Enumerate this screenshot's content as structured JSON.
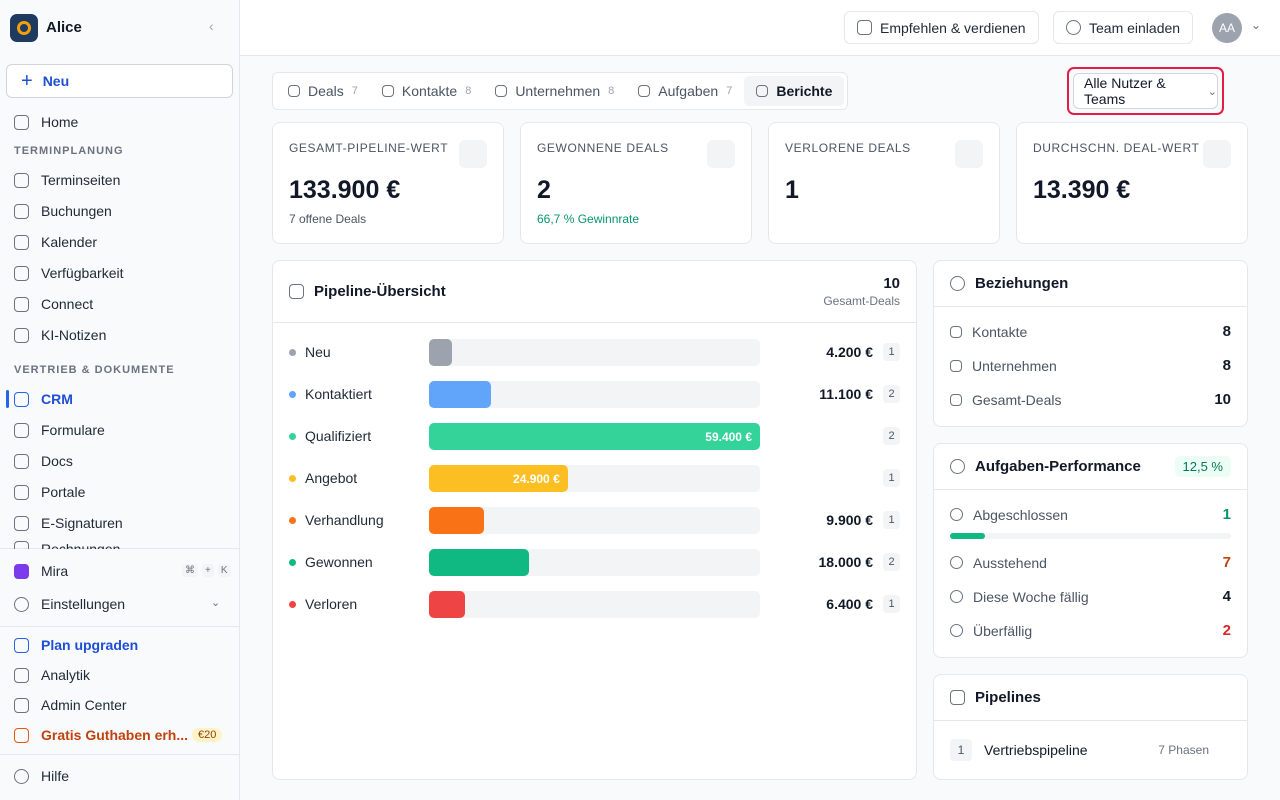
{
  "sidebar": {
    "workspace": "Alice",
    "new_button": "Neu",
    "home": "Home",
    "sections": [
      {
        "title": "TERMINPLANUNG",
        "items": [
          "Terminseiten",
          "Buchungen",
          "Kalender",
          "Verfügbarkeit",
          "Connect",
          "KI-Notizen"
        ]
      },
      {
        "title": "VERTRIEB & DOKUMENTE",
        "items": [
          "CRM",
          "Formulare",
          "Docs",
          "Portale",
          "E-Signaturen",
          "Rechnungen"
        ]
      }
    ],
    "assistant": {
      "label": "Mira",
      "keys": [
        "⌘",
        "+",
        "K"
      ]
    },
    "settings": "Einstellungen",
    "bottom": [
      "Plan upgraden",
      "Analytik",
      "Admin Center",
      "Gratis Guthaben erh..."
    ],
    "credit_badge": "€20",
    "help": "Hilfe"
  },
  "header": {
    "refer": "Empfehlen & verdienen",
    "invite": "Team einladen",
    "avatar": "AA"
  },
  "tabs": [
    {
      "label": "Deals",
      "count": 7
    },
    {
      "label": "Kontakte",
      "count": 8
    },
    {
      "label": "Unternehmen",
      "count": 8
    },
    {
      "label": "Aufgaben",
      "count": 7
    },
    {
      "label": "Berichte"
    }
  ],
  "filter": "Alle Nutzer & Teams",
  "kpis": [
    {
      "label": "GESAMT-PIPELINE-WERT",
      "value": "133.900 €",
      "sub": "7 offene Deals"
    },
    {
      "label": "GEWONNENE DEALS",
      "value": "2",
      "sub": "66,7 % Gewinnrate"
    },
    {
      "label": "VERLORENE DEALS",
      "value": "1"
    },
    {
      "label": "DURCHSCHN. DEAL-WERT",
      "value": "13.390 €"
    }
  ],
  "pipeline": {
    "title": "Pipeline-Übersicht",
    "total": 10,
    "total_label": "Gesamt-Deals",
    "stages": [
      {
        "name": "Neu",
        "color": "#9ca3af",
        "value": {
          "value": 4200,
          "label": "4.200 €"
        },
        "count": 1
      },
      {
        "name": "Kontaktiert",
        "color": "#60a5fa",
        "value": {
          "value": 11100,
          "label": "11.100 €"
        },
        "count": 2
      },
      {
        "name": "Qualifiziert",
        "color": "#34d399",
        "value": {
          "value": 59400,
          "label": "59.400 €"
        },
        "count": 2,
        "label_inside": true
      },
      {
        "name": "Angebot",
        "color": "#fbbf24",
        "value": {
          "value": 24900,
          "label": "24.900 €"
        },
        "count": 1,
        "label_inside": true
      },
      {
        "name": "Verhandlung",
        "color": "#f97316",
        "value": {
          "value": 9900,
          "label": "9.900 €"
        },
        "count": 1
      },
      {
        "name": "Gewonnen",
        "color": "#10b981",
        "value": {
          "value": 18000,
          "label": "18.000 €"
        },
        "count": 2
      },
      {
        "name": "Verloren",
        "color": "#ef4444",
        "value": {
          "value": 6400,
          "label": "6.400 €"
        },
        "count": 1
      }
    ]
  },
  "relations": {
    "title": "Beziehungen",
    "rows": [
      {
        "label": "Kontakte",
        "value": 8
      },
      {
        "label": "Unternehmen",
        "value": 8
      },
      {
        "label": "Gesamt-Deals",
        "value": 10
      }
    ]
  },
  "tasks": {
    "title": "Aufgaben-Performance",
    "rate": {
      "value": 12.5,
      "label": "12,5 %"
    },
    "rows": [
      {
        "label": "Abgeschlossen",
        "value": 1,
        "color": "#059669"
      },
      {
        "label": "Ausstehend",
        "value": 7,
        "color": "#c2410c"
      },
      {
        "label": "Diese Woche fällig",
        "value": 4,
        "color": "#111827"
      },
      {
        "label": "Überfällig",
        "value": 2,
        "color": "#dc2626"
      }
    ]
  },
  "pipelines": {
    "title": "Pipelines",
    "items": [
      {
        "index": 1,
        "name": "Vertriebspipeline",
        "phases": "7 Phasen"
      }
    ]
  }
}
